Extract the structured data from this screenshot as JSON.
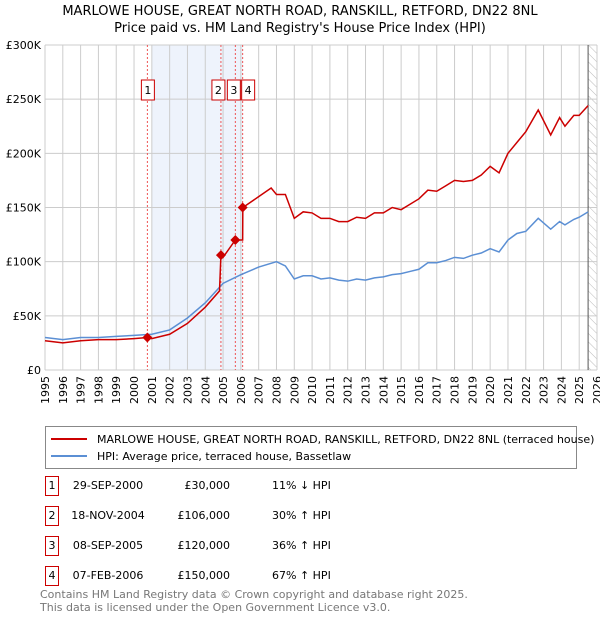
{
  "chart_data": {
    "type": "line",
    "title": "MARLOWE HOUSE, GREAT NORTH ROAD, RANSKILL, RETFORD, DN22 8NL",
    "subtitle": "Price paid vs. HM Land Registry's House Price Index (HPI)",
    "xlim": [
      1995,
      2026
    ],
    "ylim": [
      0,
      300000
    ],
    "x_ticks": [
      "1995",
      "1996",
      "1997",
      "1998",
      "1999",
      "2000",
      "2001",
      "2002",
      "2003",
      "2004",
      "2005",
      "2006",
      "2007",
      "2008",
      "2009",
      "2010",
      "2011",
      "2012",
      "2013",
      "2014",
      "2015",
      "2016",
      "2017",
      "2018",
      "2019",
      "2020",
      "2021",
      "2022",
      "2023",
      "2024",
      "2025",
      "2026"
    ],
    "y_ticks": [
      {
        "v": 0,
        "label": "£0"
      },
      {
        "v": 50000,
        "label": "£50K"
      },
      {
        "v": 100000,
        "label": "£100K"
      },
      {
        "v": 150000,
        "label": "£150K"
      },
      {
        "v": 200000,
        "label": "£200K"
      },
      {
        "v": 250000,
        "label": "£250K"
      },
      {
        "v": 300000,
        "label": "£300K"
      }
    ],
    "grid": true,
    "series": [
      {
        "name": "MARLOWE HOUSE, GREAT NORTH ROAD, RANSKILL, RETFORD, DN22 8NL (terraced house)",
        "color": "#cc0000",
        "x": [
          1995,
          1996,
          1997,
          1998,
          1999,
          2000,
          2000.75,
          2001,
          2002,
          2003,
          2004,
          2004.8,
          2004.88,
          2005,
          2005.69,
          2006.1,
          2006.11,
          2007,
          2007.7,
          2008,
          2008.5,
          2009,
          2009.5,
          2010,
          2010.5,
          2011,
          2011.5,
          2012,
          2012.5,
          2013,
          2013.5,
          2014,
          2014.5,
          2015,
          2015.5,
          2016,
          2016.5,
          2017,
          2017.5,
          2018,
          2018.5,
          2019,
          2019.5,
          2020,
          2020.5,
          2021,
          2021.5,
          2022,
          2022.7,
          2023.4,
          2023.9,
          2024.2,
          2024.7,
          2025,
          2025.5
        ],
        "y": [
          27000,
          25000,
          27000,
          28000,
          28000,
          29000,
          30000,
          29000,
          33000,
          43000,
          58000,
          73000,
          106000,
          104000,
          120000,
          120000,
          150000,
          160000,
          168000,
          162000,
          162000,
          140000,
          146000,
          145000,
          140000,
          140000,
          137000,
          137000,
          141000,
          140000,
          145000,
          145000,
          150000,
          148000,
          153000,
          158000,
          166000,
          165000,
          170000,
          175000,
          174000,
          175000,
          180000,
          188000,
          182000,
          200000,
          210000,
          220000,
          240000,
          217000,
          233000,
          225000,
          235000,
          235000,
          244000
        ]
      },
      {
        "name": "HPI: Average price, terraced house, Bassetlaw",
        "color": "#5b8fd4",
        "x": [
          1995,
          1996,
          1997,
          1998,
          1999,
          2000,
          2001,
          2002,
          2003,
          2004,
          2005,
          2006,
          2007,
          2008,
          2008.5,
          2009,
          2009.5,
          2010,
          2010.5,
          2011,
          2011.5,
          2012,
          2012.5,
          2013,
          2013.5,
          2014,
          2014.5,
          2015,
          2015.5,
          2016,
          2016.5,
          2017,
          2017.5,
          2018,
          2018.5,
          2019,
          2019.5,
          2020,
          2020.5,
          2021,
          2021.5,
          2022,
          2022.7,
          2023.4,
          2023.9,
          2024.2,
          2024.7,
          2025,
          2025.5
        ],
        "y": [
          30000,
          28000,
          30000,
          30000,
          31000,
          32000,
          33000,
          37000,
          48000,
          62000,
          80000,
          88000,
          95000,
          100000,
          96000,
          84000,
          87000,
          87000,
          84000,
          85000,
          83000,
          82000,
          84000,
          83000,
          85000,
          86000,
          88000,
          89000,
          91000,
          93000,
          99000,
          99000,
          101000,
          104000,
          103000,
          106000,
          108000,
          112000,
          109000,
          120000,
          126000,
          128000,
          140000,
          130000,
          137000,
          134000,
          139000,
          141000,
          146000
        ]
      }
    ],
    "sales": [
      {
        "num": "1",
        "date": "29-SEP-2000",
        "x": 2000.75,
        "price": "£30,000",
        "value": 30000,
        "hpi": "11% ↓ HPI"
      },
      {
        "num": "2",
        "date": "18-NOV-2004",
        "x": 2004.88,
        "price": "£106,000",
        "value": 106000,
        "hpi": "30% ↑ HPI"
      },
      {
        "num": "3",
        "date": "08-SEP-2005",
        "x": 2005.69,
        "price": "£120,000",
        "value": 120000,
        "hpi": "36% ↑ HPI"
      },
      {
        "num": "4",
        "date": "07-FEB-2006",
        "x": 2006.1,
        "price": "£150,000",
        "value": 150000,
        "hpi": "67% ↑ HPI"
      }
    ],
    "shaded_range": [
      2001,
      2006.1
    ],
    "forecast_from": 2025.5
  },
  "footer": {
    "line1": "Contains HM Land Registry data © Crown copyright and database right 2025.",
    "line2": "This data is licensed under the Open Government Licence v3.0."
  }
}
